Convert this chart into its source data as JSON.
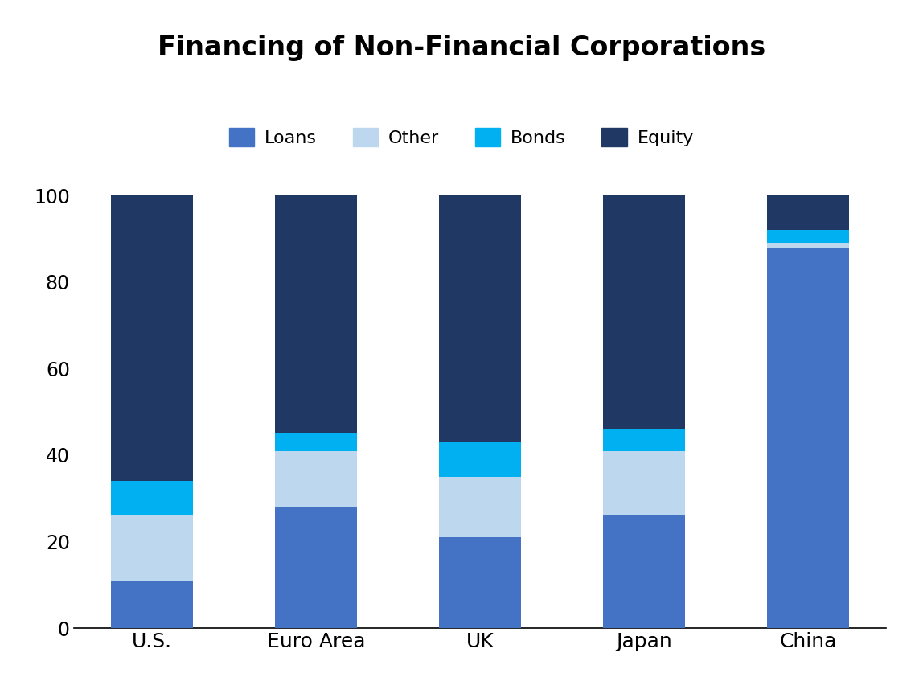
{
  "title": "Financing of Non-Financial Corporations",
  "categories": [
    "U.S.",
    "Euro Area",
    "UK",
    "Japan",
    "China"
  ],
  "series": {
    "Loans": [
      11,
      28,
      21,
      26,
      88
    ],
    "Other": [
      15,
      13,
      14,
      15,
      1
    ],
    "Bonds": [
      8,
      4,
      8,
      5,
      3
    ],
    "Equity": [
      66,
      55,
      57,
      54,
      8
    ]
  },
  "colors": {
    "Loans": "#4472C4",
    "Other": "#BDD7EE",
    "Bonds": "#00B0F0",
    "Equity": "#1F3864"
  },
  "legend_order": [
    "Loans",
    "Other",
    "Bonds",
    "Equity"
  ],
  "ylim": [
    0,
    100
  ],
  "yticks": [
    0,
    20,
    40,
    60,
    80,
    100
  ],
  "title_fontsize": 24,
  "tick_fontsize": 17,
  "legend_fontsize": 16,
  "bar_width": 0.5,
  "background_color": "#FFFFFF"
}
